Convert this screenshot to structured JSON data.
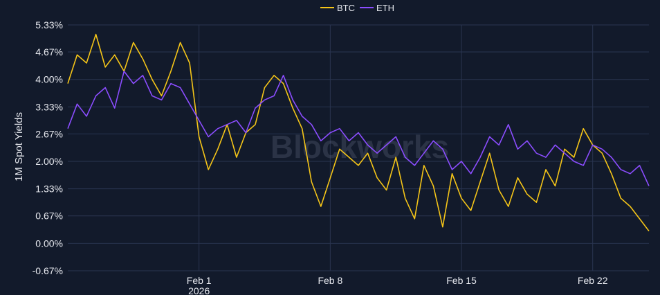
{
  "chart_data": {
    "type": "line",
    "title": "",
    "ylabel": "1M Spot Yields",
    "xlabel": "",
    "ylim": [
      -0.67,
      5.33
    ],
    "yticks": [
      "5.33%",
      "4.67%",
      "4.00%",
      "3.33%",
      "2.67%",
      "2.00%",
      "1.33%",
      "0.67%",
      "0.00%",
      "-0.67%"
    ],
    "ytick_values": [
      5.33,
      4.67,
      4.0,
      3.33,
      2.67,
      2.0,
      1.33,
      0.67,
      0.0,
      -0.67
    ],
    "x_range": [
      "2026-01-25",
      "2026-02-25"
    ],
    "xticks": [
      {
        "date": "2026-02-01",
        "label": "Feb 1",
        "sublabel": "2026"
      },
      {
        "date": "2026-02-08",
        "label": "Feb 8",
        "sublabel": ""
      },
      {
        "date": "2026-02-15",
        "label": "Feb 15",
        "sublabel": ""
      },
      {
        "date": "2026-02-22",
        "label": "Feb 22",
        "sublabel": ""
      }
    ],
    "legend_position": "top-center",
    "grid": true,
    "watermark": "Blockworks",
    "series": [
      {
        "name": "BTC",
        "color": "#f5c518",
        "x": [
          "2026-01-25T00:00",
          "2026-01-25T12:00",
          "2026-01-26T00:00",
          "2026-01-26T12:00",
          "2026-01-27T00:00",
          "2026-01-27T12:00",
          "2026-01-28T00:00",
          "2026-01-28T12:00",
          "2026-01-29T00:00",
          "2026-01-29T12:00",
          "2026-01-30T00:00",
          "2026-01-30T12:00",
          "2026-01-31T00:00",
          "2026-01-31T12:00",
          "2026-02-01T00:00",
          "2026-02-01T12:00",
          "2026-02-02T00:00",
          "2026-02-02T12:00",
          "2026-02-03T00:00",
          "2026-02-03T12:00",
          "2026-02-04T00:00",
          "2026-02-04T12:00",
          "2026-02-05T00:00",
          "2026-02-05T12:00",
          "2026-02-06T00:00",
          "2026-02-06T12:00",
          "2026-02-07T00:00",
          "2026-02-07T12:00",
          "2026-02-08T00:00",
          "2026-02-08T12:00",
          "2026-02-09T00:00",
          "2026-02-09T12:00",
          "2026-02-10T00:00",
          "2026-02-10T12:00",
          "2026-02-11T00:00",
          "2026-02-11T12:00",
          "2026-02-12T00:00",
          "2026-02-12T12:00",
          "2026-02-13T00:00",
          "2026-02-13T12:00",
          "2026-02-14T00:00",
          "2026-02-14T12:00",
          "2026-02-15T00:00",
          "2026-02-15T12:00",
          "2026-02-16T00:00",
          "2026-02-16T12:00",
          "2026-02-17T00:00",
          "2026-02-17T12:00",
          "2026-02-18T00:00",
          "2026-02-18T12:00",
          "2026-02-19T00:00",
          "2026-02-19T12:00",
          "2026-02-20T00:00",
          "2026-02-20T12:00",
          "2026-02-21T00:00",
          "2026-02-21T12:00",
          "2026-02-22T00:00",
          "2026-02-22T12:00",
          "2026-02-23T00:00",
          "2026-02-23T12:00",
          "2026-02-24T00:00",
          "2026-02-24T12:00",
          "2026-02-25T00:00"
        ],
        "values": [
          3.9,
          4.6,
          4.4,
          5.1,
          4.3,
          4.6,
          4.2,
          4.9,
          4.5,
          4.0,
          3.6,
          4.2,
          4.9,
          4.4,
          2.6,
          1.8,
          2.3,
          2.9,
          2.1,
          2.7,
          2.9,
          3.8,
          4.1,
          3.9,
          3.3,
          2.8,
          1.5,
          0.9,
          1.6,
          2.3,
          2.1,
          1.9,
          2.2,
          1.6,
          1.3,
          2.1,
          1.1,
          0.6,
          1.9,
          1.4,
          0.4,
          1.7,
          1.1,
          0.8,
          1.5,
          2.2,
          1.3,
          0.9,
          1.6,
          1.2,
          1.0,
          1.8,
          1.4,
          2.3,
          2.1,
          2.8,
          2.4,
          2.2,
          1.7,
          1.1,
          0.9,
          0.6,
          0.3
        ]
      },
      {
        "name": "ETH",
        "color": "#8b4dff",
        "x": [
          "2026-01-25T00:00",
          "2026-01-25T12:00",
          "2026-01-26T00:00",
          "2026-01-26T12:00",
          "2026-01-27T00:00",
          "2026-01-27T12:00",
          "2026-01-28T00:00",
          "2026-01-28T12:00",
          "2026-01-29T00:00",
          "2026-01-29T12:00",
          "2026-01-30T00:00",
          "2026-01-30T12:00",
          "2026-01-31T00:00",
          "2026-01-31T12:00",
          "2026-02-01T00:00",
          "2026-02-01T12:00",
          "2026-02-02T00:00",
          "2026-02-02T12:00",
          "2026-02-03T00:00",
          "2026-02-03T12:00",
          "2026-02-04T00:00",
          "2026-02-04T12:00",
          "2026-02-05T00:00",
          "2026-02-05T12:00",
          "2026-02-06T00:00",
          "2026-02-06T12:00",
          "2026-02-07T00:00",
          "2026-02-07T12:00",
          "2026-02-08T00:00",
          "2026-02-08T12:00",
          "2026-02-09T00:00",
          "2026-02-09T12:00",
          "2026-02-10T00:00",
          "2026-02-10T12:00",
          "2026-02-11T00:00",
          "2026-02-11T12:00",
          "2026-02-12T00:00",
          "2026-02-12T12:00",
          "2026-02-13T00:00",
          "2026-02-13T12:00",
          "2026-02-14T00:00",
          "2026-02-14T12:00",
          "2026-02-15T00:00",
          "2026-02-15T12:00",
          "2026-02-16T00:00",
          "2026-02-16T12:00",
          "2026-02-17T00:00",
          "2026-02-17T12:00",
          "2026-02-18T00:00",
          "2026-02-18T12:00",
          "2026-02-19T00:00",
          "2026-02-19T12:00",
          "2026-02-20T00:00",
          "2026-02-20T12:00",
          "2026-02-21T00:00",
          "2026-02-21T12:00",
          "2026-02-22T00:00",
          "2026-02-22T12:00",
          "2026-02-23T00:00",
          "2026-02-23T12:00",
          "2026-02-24T00:00",
          "2026-02-24T12:00",
          "2026-02-25T00:00"
        ],
        "values": [
          2.8,
          3.4,
          3.1,
          3.6,
          3.8,
          3.3,
          4.2,
          3.9,
          4.1,
          3.6,
          3.5,
          3.9,
          3.8,
          3.4,
          3.0,
          2.6,
          2.8,
          2.9,
          3.0,
          2.7,
          3.3,
          3.5,
          3.6,
          4.1,
          3.5,
          3.1,
          2.9,
          2.5,
          2.7,
          2.8,
          2.5,
          2.7,
          2.4,
          2.2,
          2.4,
          2.6,
          2.1,
          1.9,
          2.2,
          2.5,
          2.3,
          1.8,
          2.0,
          1.7,
          2.1,
          2.6,
          2.4,
          2.9,
          2.3,
          2.5,
          2.2,
          2.1,
          2.4,
          2.2,
          2.0,
          1.9,
          2.4,
          2.3,
          2.1,
          1.8,
          1.7,
          1.9,
          1.4
        ]
      }
    ]
  }
}
